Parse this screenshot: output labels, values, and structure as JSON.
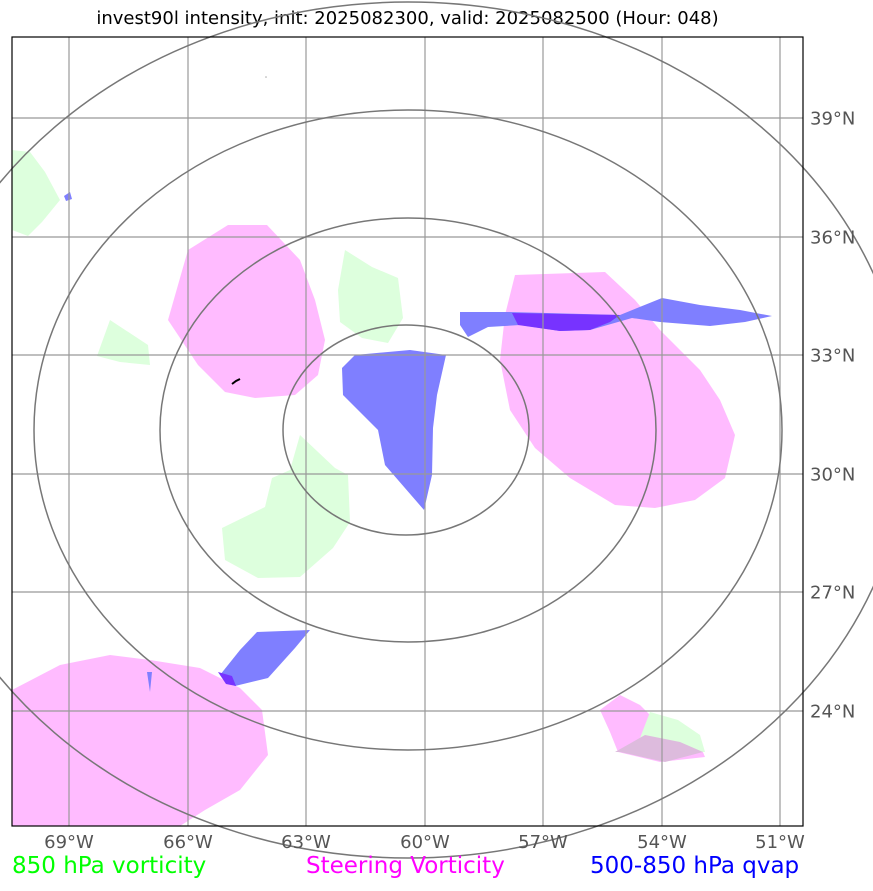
{
  "title": "invest90l intensity, init: 2025082300, valid: 2025082500 (Hour: 048)",
  "longitude_labels": [
    "69°W",
    "66°W",
    "63°W",
    "60°W",
    "57°W",
    "54°W",
    "51°W"
  ],
  "latitude_labels": [
    "39°N",
    "36°N",
    "33°N",
    "30°N",
    "27°N",
    "24°N"
  ],
  "legend": [
    {
      "label": "850 hPa vorticity",
      "color": "#00ff00"
    },
    {
      "label": "Steering Vorticity",
      "color": "#ff00ff"
    },
    {
      "label": "500-850 hPa qvap",
      "color": "#0000ff"
    }
  ],
  "field_colors": {
    "vorticity_850": "#ddffdd",
    "steering_vorticity": "#ffbbff",
    "qvap": "#7f7fff",
    "overlap": "#7733ff"
  },
  "map": {
    "center": "60°W, 31°N",
    "range_ring_count": 4,
    "lon_range_deg": [
      -70.4,
      -50.4
    ],
    "lat_range_deg": [
      21.4,
      41.4
    ]
  }
}
